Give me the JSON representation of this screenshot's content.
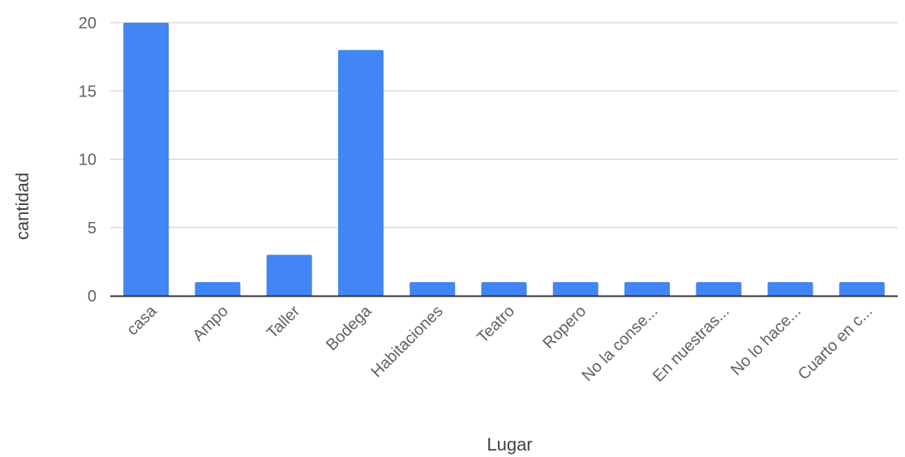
{
  "chart_data": {
    "type": "bar",
    "title": "",
    "xlabel": "Lugar",
    "ylabel": "cantidad",
    "categories": [
      "casa",
      "Ampo",
      "Taller",
      "Bodega",
      "Habitaciones",
      "Teatro",
      "Ropero",
      "No la conse...",
      "En nuestras...",
      "No lo hace...",
      "Cuarto en c..."
    ],
    "values": [
      20,
      1,
      3,
      18,
      1,
      1,
      1,
      1,
      1,
      1,
      1
    ],
    "ylim": [
      0,
      20
    ],
    "yticks": [
      0,
      5,
      10,
      15,
      20
    ],
    "grid": true,
    "legend": "none",
    "colors": {
      "bar": "#4285f4",
      "grid": "#cccccc",
      "axis": "#333333"
    }
  }
}
